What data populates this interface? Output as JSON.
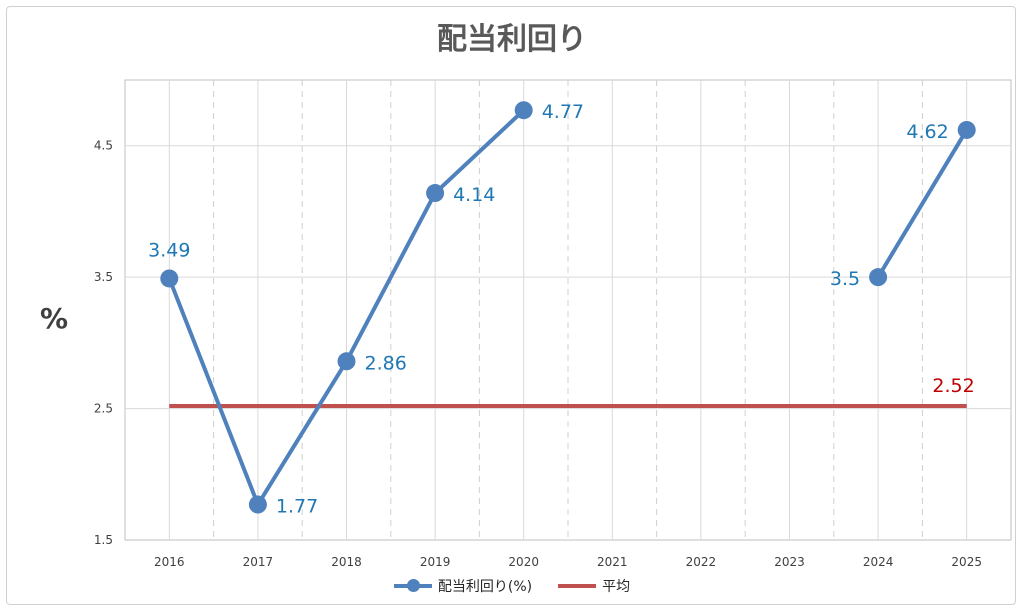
{
  "chart_data": {
    "type": "line",
    "title": "配当利回り",
    "ylabel": "%",
    "categories": [
      "2016",
      "2017",
      "2018",
      "2019",
      "2020",
      "2021",
      "2022",
      "2023",
      "2024",
      "2025"
    ],
    "ylim": [
      1.5,
      5.0
    ],
    "yticks": [
      "1.5",
      "2.5",
      "3.5",
      "4.5"
    ],
    "ytick_values": [
      1.5,
      2.5,
      3.5,
      4.5
    ],
    "grid": true,
    "legend_position": "bottom",
    "series": [
      {
        "name": "配当利回り(%)",
        "color": "#4f81bd",
        "label_color": "#1f77b4",
        "values": [
          3.49,
          1.77,
          2.86,
          4.14,
          4.77,
          null,
          null,
          null,
          3.5,
          4.62
        ],
        "labels": [
          "3.49",
          "1.77",
          "2.86",
          "4.14",
          "4.77",
          "",
          "",
          "",
          "3.5",
          "4.62"
        ]
      },
      {
        "name": "平均",
        "color": "#c0504d",
        "label_color": "#c00000",
        "values": [
          2.52,
          2.52,
          2.52,
          2.52,
          2.52,
          2.52,
          2.52,
          2.52,
          2.52,
          2.52
        ],
        "end_label": "2.52"
      }
    ]
  }
}
